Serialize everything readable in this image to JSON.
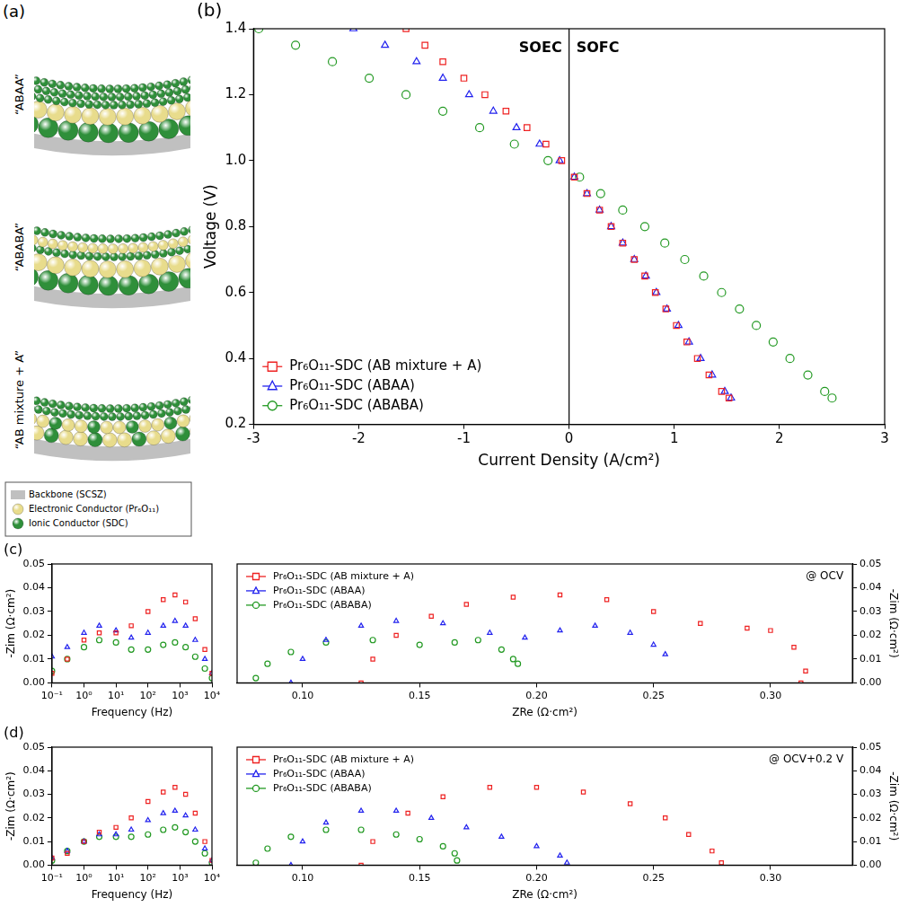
{
  "diagram": {
    "panel": "(a)",
    "structures": [
      "“ABAA”",
      "“ABABA”",
      "“AB mixture + A”"
    ],
    "legend": [
      {
        "label": "Backbone (SCSZ)",
        "color": "#c0c0c0"
      },
      {
        "label": "Electronic Conductor (Pr₆O₁₁)",
        "color": "#e8dc8c"
      },
      {
        "label": "Ionic Conductor (SDC)",
        "color": "#2f8f3a"
      }
    ]
  },
  "chart_data": [
    {
      "panel": "(b)",
      "type": "scatter",
      "x_label": "Current Density (A/cm²)",
      "y_label": "Voltage (V)",
      "xlim": [
        -3,
        3
      ],
      "xticks": [
        -3,
        -2,
        -1,
        0,
        1,
        2,
        3
      ],
      "ylim": [
        0.2,
        1.4
      ],
      "yticks": [
        0.2,
        0.4,
        0.6,
        0.8,
        {
          "value": 1,
          "label": "1.0"
        },
        1.2,
        1.4
      ],
      "grid": false,
      "legend": "lower left",
      "vlines": [
        0
      ],
      "annotations": [
        "SOEC",
        "SOFC"
      ],
      "series": [
        {
          "name": "Pr₆O₁₁-SDC (AB mixture + A)",
          "color": "#ee2222",
          "marker": "square",
          "x": [
            -1.55,
            -1.37,
            -1.2,
            -1.0,
            -0.8,
            -0.6,
            -0.4,
            -0.22,
            -0.07,
            0.05,
            0.17,
            0.29,
            0.4,
            0.51,
            0.62,
            0.72,
            0.82,
            0.92,
            1.02,
            1.12,
            1.22,
            1.33,
            1.45,
            1.52
          ],
          "values": [
            1.4,
            1.35,
            1.3,
            1.25,
            1.2,
            1.15,
            1.1,
            1.05,
            1.0,
            0.95,
            0.9,
            0.85,
            0.8,
            0.75,
            0.7,
            0.65,
            0.6,
            0.55,
            0.5,
            0.45,
            0.4,
            0.35,
            0.3,
            0.28
          ]
        },
        {
          "name": "Pr₆O₁₁-SDC (ABAA)",
          "color": "#2222ee",
          "marker": "triangle",
          "x": [
            -2.05,
            -1.75,
            -1.45,
            -1.2,
            -0.95,
            -0.72,
            -0.5,
            -0.28,
            -0.09,
            0.05,
            0.17,
            0.29,
            0.4,
            0.51,
            0.62,
            0.73,
            0.83,
            0.93,
            1.04,
            1.14,
            1.25,
            1.36,
            1.48,
            1.54
          ],
          "values": [
            1.4,
            1.35,
            1.3,
            1.25,
            1.2,
            1.15,
            1.1,
            1.05,
            1.0,
            0.95,
            0.9,
            0.85,
            0.8,
            0.75,
            0.7,
            0.65,
            0.6,
            0.55,
            0.5,
            0.45,
            0.4,
            0.35,
            0.3,
            0.28
          ]
        },
        {
          "name": "Pr₆O₁₁-SDC (ABABA)",
          "color": "#229922",
          "marker": "circle",
          "x": [
            -2.95,
            -2.6,
            -2.25,
            -1.9,
            -1.55,
            -1.2,
            -0.85,
            -0.52,
            -0.2,
            0.1,
            0.3,
            0.51,
            0.72,
            0.91,
            1.1,
            1.28,
            1.45,
            1.62,
            1.78,
            1.94,
            2.1,
            2.27,
            2.43,
            2.5
          ],
          "values": [
            1.4,
            1.35,
            1.3,
            1.25,
            1.2,
            1.15,
            1.1,
            1.05,
            1.0,
            0.95,
            0.9,
            0.85,
            0.8,
            0.75,
            0.7,
            0.65,
            0.6,
            0.55,
            0.5,
            0.45,
            0.4,
            0.35,
            0.3,
            0.28
          ]
        }
      ]
    },
    {
      "panel": "(c)",
      "type": "scatter",
      "log": "x",
      "x_label": "Frequency (Hz)",
      "y_label": "-Zim (Ω·cm²)",
      "xlim": [
        0.1,
        10000
      ],
      "xticks": [
        {
          "value": 0.1,
          "label": "10⁻¹"
        },
        {
          "value": 1,
          "label": "10⁰"
        },
        {
          "value": 10,
          "label": "10¹"
        },
        {
          "value": 100,
          "label": "10²"
        },
        {
          "value": 1000,
          "label": "10³"
        },
        {
          "value": 10000,
          "label": "10⁴"
        }
      ],
      "ylim": [
        0,
        0.05
      ],
      "yticks": [
        {
          "value": 0,
          "label": "0.00"
        },
        0.01,
        0.02,
        0.03,
        0.04,
        0.05
      ],
      "grid": false,
      "series": [
        {
          "color": "#ee2222",
          "marker": "square",
          "x": [
            0.1,
            0.3,
            1,
            3,
            10,
            30,
            100,
            300,
            700,
            1500,
            3000,
            6000,
            10000
          ],
          "values": [
            0.004,
            0.01,
            0.018,
            0.021,
            0.021,
            0.024,
            0.03,
            0.035,
            0.037,
            0.034,
            0.027,
            0.014,
            0.004
          ]
        },
        {
          "color": "#2222ee",
          "marker": "triangle",
          "x": [
            0.1,
            0.3,
            1,
            3,
            10,
            30,
            100,
            300,
            700,
            1500,
            3000,
            6000,
            10000
          ],
          "values": [
            0.011,
            0.015,
            0.021,
            0.024,
            0.022,
            0.019,
            0.021,
            0.024,
            0.026,
            0.024,
            0.018,
            0.01,
            0.004
          ]
        },
        {
          "color": "#229922",
          "marker": "circle",
          "x": [
            0.1,
            0.3,
            1,
            3,
            10,
            30,
            100,
            300,
            700,
            1500,
            3000,
            6000,
            10000
          ],
          "values": [
            0.005,
            0.01,
            0.015,
            0.018,
            0.017,
            0.014,
            0.014,
            0.016,
            0.017,
            0.015,
            0.011,
            0.006,
            0.002
          ]
        }
      ]
    },
    {
      "type": "scatter",
      "x_label": "ZRe (Ω·cm²)",
      "y_label": "-Zim (Ω·cm²)",
      "xlim": [
        0.072,
        0.335
      ],
      "xticks": [
        {
          "value": 0.1,
          "label": "0.10"
        },
        0.15,
        {
          "value": 0.2,
          "label": "0.20"
        },
        0.25,
        {
          "value": 0.3,
          "label": "0.30"
        }
      ],
      "ylim": [
        0,
        0.05
      ],
      "yticks": [
        {
          "value": 0,
          "label": "0.00"
        },
        0.01,
        0.02,
        0.03,
        0.04,
        0.05
      ],
      "grid": false,
      "legend": "upper left",
      "annotations": [
        "@ OCV"
      ],
      "series": [
        {
          "name": "Pr₆O₁₁-SDC (AB mixture + A)",
          "color": "#ee2222",
          "marker": "square",
          "x": [
            0.125,
            0.13,
            0.14,
            0.155,
            0.17,
            0.19,
            0.21,
            0.23,
            0.25,
            0.27,
            0.29,
            0.3,
            0.31,
            0.315,
            0.313
          ],
          "values": [
            0,
            0.01,
            0.02,
            0.028,
            0.033,
            0.036,
            0.037,
            0.035,
            0.03,
            0.025,
            0.023,
            0.022,
            0.015,
            0.005,
            0
          ]
        },
        {
          "name": "Pr₆O₁₁-SDC (ABAA)",
          "color": "#2222ee",
          "marker": "triangle",
          "x": [
            0.095,
            0.1,
            0.11,
            0.125,
            0.14,
            0.16,
            0.18,
            0.195,
            0.21,
            0.225,
            0.24,
            0.25,
            0.255
          ],
          "values": [
            0,
            0.01,
            0.018,
            0.024,
            0.026,
            0.025,
            0.021,
            0.019,
            0.022,
            0.024,
            0.021,
            0.016,
            0.012
          ]
        },
        {
          "name": "Pr₆O₁₁-SDC (ABABA)",
          "color": "#229922",
          "marker": "circle",
          "x": [
            0.08,
            0.085,
            0.095,
            0.11,
            0.13,
            0.15,
            0.165,
            0.175,
            0.185,
            0.19,
            0.192
          ],
          "values": [
            0.002,
            0.008,
            0.013,
            0.017,
            0.018,
            0.016,
            0.017,
            0.018,
            0.014,
            0.01,
            0.008
          ]
        }
      ]
    },
    {
      "panel": "(d)",
      "type": "scatter",
      "log": "x",
      "x_label": "Frequency (Hz)",
      "y_label": "-Zim (Ω·cm²)",
      "xlim": [
        0.1,
        10000
      ],
      "xticks": [
        {
          "value": 0.1,
          "label": "10⁻¹"
        },
        {
          "value": 1,
          "label": "10⁰"
        },
        {
          "value": 10,
          "label": "10¹"
        },
        {
          "value": 100,
          "label": "10²"
        },
        {
          "value": 1000,
          "label": "10³"
        },
        {
          "value": 10000,
          "label": "10⁴"
        }
      ],
      "ylim": [
        0,
        0.05
      ],
      "yticks": [
        {
          "value": 0,
          "label": "0.00"
        },
        0.01,
        0.02,
        0.03,
        0.04,
        0.05
      ],
      "grid": false,
      "series": [
        {
          "color": "#ee2222",
          "marker": "square",
          "x": [
            0.1,
            0.3,
            1,
            3,
            10,
            30,
            100,
            300,
            700,
            1500,
            3000,
            6000,
            10000
          ],
          "values": [
            0.003,
            0.005,
            0.01,
            0.014,
            0.016,
            0.02,
            0.027,
            0.031,
            0.033,
            0.03,
            0.022,
            0.01,
            0.002
          ]
        },
        {
          "color": "#2222ee",
          "marker": "triangle",
          "x": [
            0.1,
            0.3,
            1,
            3,
            10,
            30,
            100,
            300,
            700,
            1500,
            3000,
            6000,
            10000
          ],
          "values": [
            0.003,
            0.006,
            0.01,
            0.013,
            0.013,
            0.015,
            0.019,
            0.022,
            0.023,
            0.021,
            0.015,
            0.007,
            0.002
          ]
        },
        {
          "color": "#229922",
          "marker": "circle",
          "x": [
            0.1,
            0.3,
            1,
            3,
            10,
            30,
            100,
            300,
            700,
            1500,
            3000,
            6000,
            10000
          ],
          "values": [
            0.002,
            0.006,
            0.01,
            0.012,
            0.012,
            0.012,
            0.013,
            0.015,
            0.016,
            0.014,
            0.01,
            0.005,
            0.001
          ]
        }
      ]
    },
    {
      "type": "scatter",
      "x_label": "ZRe (Ω·cm²)",
      "y_label": "-Zim (Ω·cm²)",
      "xlim": [
        0.072,
        0.335
      ],
      "xticks": [
        {
          "value": 0.1,
          "label": "0.10"
        },
        0.15,
        {
          "value": 0.2,
          "label": "0.20"
        },
        0.25,
        {
          "value": 0.3,
          "label": "0.30"
        }
      ],
      "ylim": [
        0,
        0.05
      ],
      "yticks": [
        {
          "value": 0,
          "label": "0.00"
        },
        0.01,
        0.02,
        0.03,
        0.04,
        0.05
      ],
      "grid": false,
      "legend": "upper left",
      "annotations": [
        "@ OCV+0.2 V"
      ],
      "series": [
        {
          "name": "Pr₆O₁₁-SDC (AB mixture + A)",
          "color": "#ee2222",
          "marker": "square",
          "x": [
            0.125,
            0.13,
            0.145,
            0.16,
            0.18,
            0.2,
            0.22,
            0.24,
            0.255,
            0.265,
            0.275,
            0.279
          ],
          "values": [
            0,
            0.01,
            0.022,
            0.029,
            0.033,
            0.033,
            0.031,
            0.026,
            0.02,
            0.013,
            0.006,
            0.001
          ]
        },
        {
          "name": "Pr₆O₁₁-SDC (ABAA)",
          "color": "#2222ee",
          "marker": "triangle",
          "x": [
            0.095,
            0.1,
            0.11,
            0.125,
            0.14,
            0.155,
            0.17,
            0.185,
            0.2,
            0.21,
            0.213
          ],
          "values": [
            0,
            0.01,
            0.018,
            0.023,
            0.023,
            0.02,
            0.016,
            0.012,
            0.008,
            0.004,
            0.001
          ]
        },
        {
          "name": "Pr₆O₁₁-SDC (ABABA)",
          "color": "#229922",
          "marker": "circle",
          "x": [
            0.08,
            0.085,
            0.095,
            0.11,
            0.125,
            0.14,
            0.15,
            0.16,
            0.165,
            0.166
          ],
          "values": [
            0.001,
            0.007,
            0.012,
            0.015,
            0.015,
            0.013,
            0.011,
            0.008,
            0.005,
            0.002
          ]
        }
      ]
    }
  ]
}
